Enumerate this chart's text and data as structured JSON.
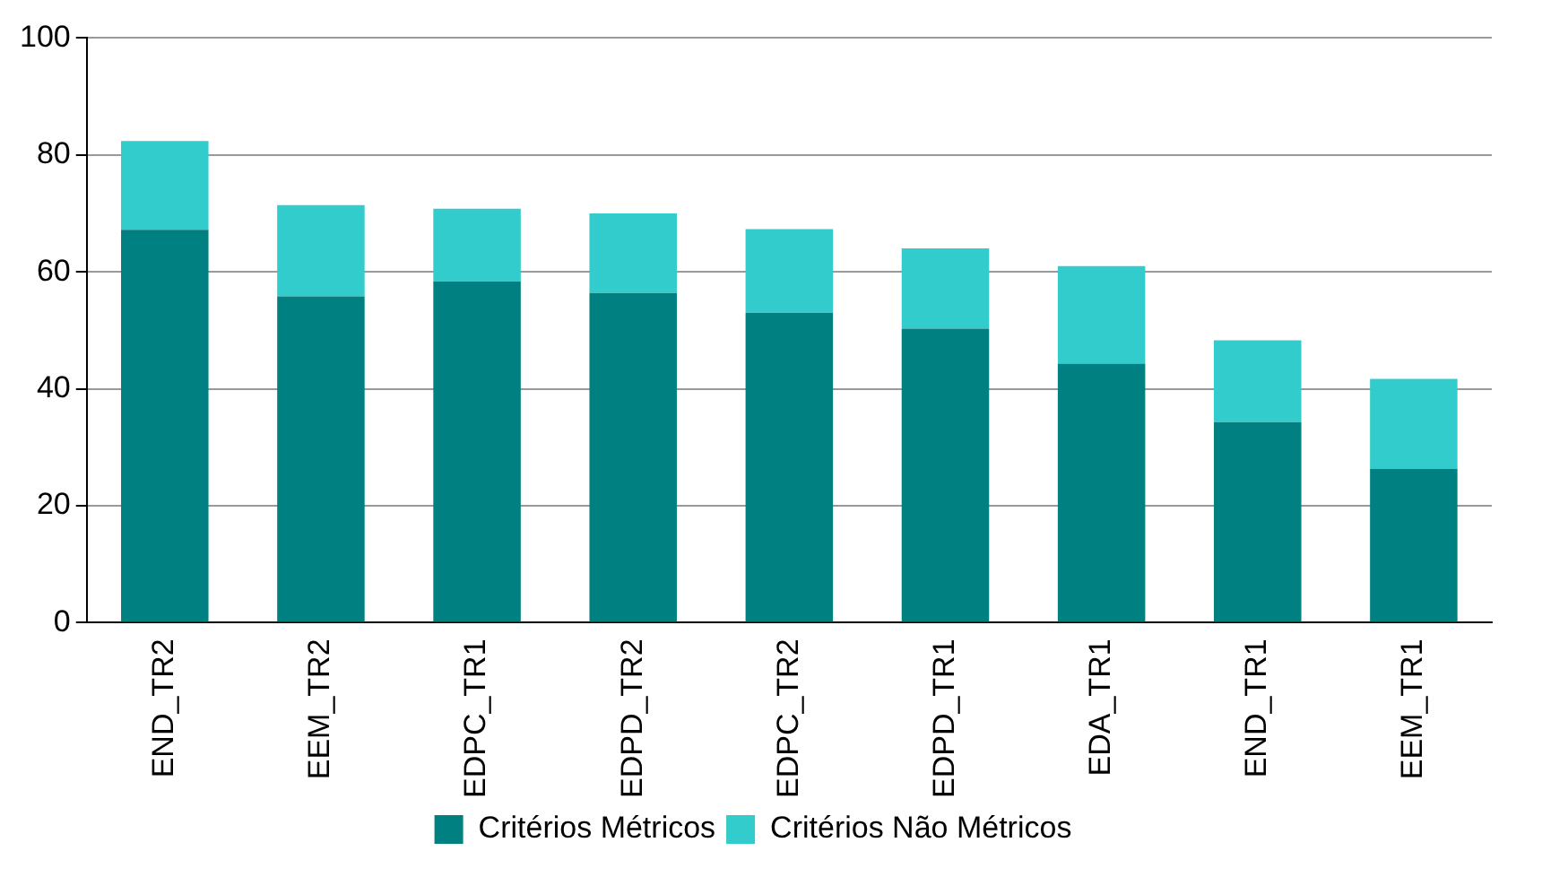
{
  "chart_data": {
    "type": "bar",
    "stacked": true,
    "categories": [
      "END_TR2",
      "EEM_TR2",
      "EDPC_TR1",
      "EDPD_TR2",
      "EDPC_TR2",
      "EDPD_TR1",
      "EDA_TR1",
      "END_TR1",
      "EEM_TR1"
    ],
    "series": [
      {
        "name": "Critérios Métricos",
        "color": "#008080",
        "values": [
          67.2,
          55.8,
          58.4,
          56.4,
          53,
          50.3,
          44.3,
          34.3,
          26.3
        ]
      },
      {
        "name": "Critérios Não Métricos",
        "color": "#33cccc",
        "values": [
          15.2,
          15.6,
          12.4,
          13.6,
          14.3,
          13.7,
          16.7,
          14,
          15.4
        ]
      }
    ],
    "ylim": [
      0,
      100
    ],
    "yticks": [
      0,
      20,
      40,
      60,
      80,
      100
    ],
    "grid": "y",
    "legend": "bottom"
  }
}
